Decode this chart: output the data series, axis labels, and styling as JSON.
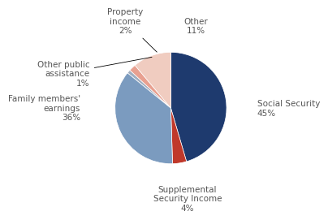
{
  "slices": [
    {
      "label": "Social Security\n45%",
      "value": 45,
      "color": "#1e3a6e"
    },
    {
      "label": "Supplemental\nSecurity Income\n4%",
      "value": 4,
      "color": "#c0392b"
    },
    {
      "label": "Family members'\nearnings\n36%",
      "value": 36,
      "color": "#7b9bbf"
    },
    {
      "label": "Other public\nassistance\n1%",
      "value": 1,
      "color": "#a0aec0"
    },
    {
      "label": "Property\nincome\n2%",
      "value": 2,
      "color": "#e8a090"
    },
    {
      "label": "Other\n11%",
      "value": 11,
      "color": "#f0ccc0"
    }
  ],
  "startangle": 90,
  "background_color": "#ffffff",
  "text_color": "#555555",
  "fontsize": 7.5
}
